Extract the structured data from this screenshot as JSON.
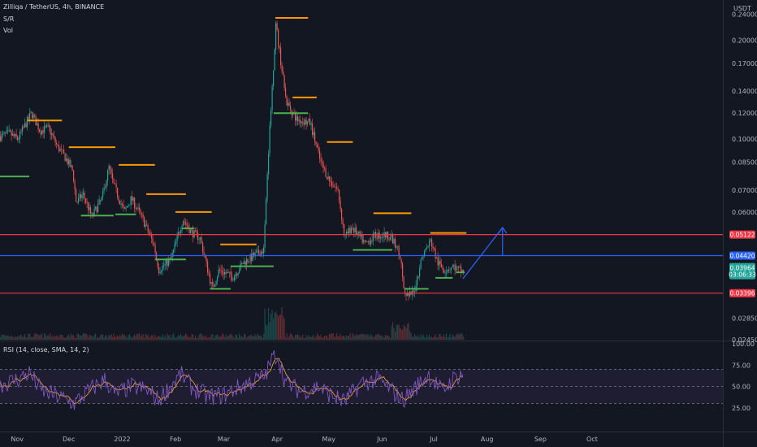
{
  "header": {
    "symbol_line": "Zilliqa / TetherUS, 4h, BINANCE",
    "indicator1": "S/R",
    "indicator2": "Vol"
  },
  "rsi_header": "RSI (14, close, SMA, 14, 2)",
  "price_axis": {
    "unit": "USDT",
    "ticks": [
      "0.24000",
      "0.20000",
      "0.17000",
      "0.14000",
      "0.12000",
      "0.10000",
      "0.08500",
      "0.07000",
      "0.06000",
      "0.02850",
      "0.02450"
    ],
    "price_tags": {
      "resistance": "0.05122",
      "current": "0.04420",
      "last": "0.03964",
      "countdown": "03:06:33",
      "support": "0.03396"
    }
  },
  "rsi_axis": {
    "ticks": [
      "100.00",
      "75.00",
      "50.00",
      "25.00"
    ]
  },
  "time_axis": {
    "labels": [
      "Nov",
      "Dec",
      "2022",
      "Feb",
      "Mar",
      "Apr",
      "May",
      "Jun",
      "Jul",
      "Aug",
      "Sep",
      "Oct"
    ]
  },
  "colors": {
    "background": "#131722",
    "up": "#26a69a",
    "down": "#ef5350",
    "resistance": "#ff9800",
    "support": "#4caf50",
    "red_line": "#f23645",
    "blue_line": "#2962ff",
    "rsi": "#7e57c2",
    "rsi_ma": "#ffa726"
  },
  "chart_data": {
    "type": "candlestick",
    "y_scale": "log",
    "ylim": [
      0.0245,
      0.245
    ],
    "rsi_ylim": [
      0,
      100
    ],
    "rsi_band": [
      30,
      70
    ],
    "price_path": [
      [
        "2021-10-22",
        0.102
      ],
      [
        "2021-10-27",
        0.104
      ],
      [
        "2021-11-01",
        0.1
      ],
      [
        "2021-11-06",
        0.112
      ],
      [
        "2021-11-09",
        0.12
      ],
      [
        "2021-11-14",
        0.106
      ],
      [
        "2021-11-19",
        0.108
      ],
      [
        "2021-11-24",
        0.095
      ],
      [
        "2021-11-28",
        0.089
      ],
      [
        "2021-12-03",
        0.08
      ],
      [
        "2021-12-05",
        0.064
      ],
      [
        "2021-12-09",
        0.068
      ],
      [
        "2021-12-14",
        0.058
      ],
      [
        "2021-12-20",
        0.066
      ],
      [
        "2021-12-24",
        0.082
      ],
      [
        "2021-12-27",
        0.072
      ],
      [
        "2022-01-02",
        0.06
      ],
      [
        "2022-01-06",
        0.066
      ],
      [
        "2022-01-12",
        0.058
      ],
      [
        "2022-01-19",
        0.048
      ],
      [
        "2022-01-22",
        0.04
      ],
      [
        "2022-01-29",
        0.043
      ],
      [
        "2022-02-05",
        0.057
      ],
      [
        "2022-02-10",
        0.052
      ],
      [
        "2022-02-15",
        0.05
      ],
      [
        "2022-02-22",
        0.035
      ],
      [
        "2022-02-26",
        0.04
      ],
      [
        "2022-03-06",
        0.038
      ],
      [
        "2022-03-12",
        0.042
      ],
      [
        "2022-03-18",
        0.044
      ],
      [
        "2022-03-24",
        0.046
      ],
      [
        "2022-03-26",
        0.08
      ],
      [
        "2022-03-28",
        0.12
      ],
      [
        "2022-03-31",
        0.225
      ],
      [
        "2022-04-03",
        0.17
      ],
      [
        "2022-04-06",
        0.13
      ],
      [
        "2022-04-12",
        0.115
      ],
      [
        "2022-04-20",
        0.112
      ],
      [
        "2022-04-26",
        0.085
      ],
      [
        "2022-05-01",
        0.075
      ],
      [
        "2022-05-06",
        0.07
      ],
      [
        "2022-05-10",
        0.05
      ],
      [
        "2022-05-14",
        0.054
      ],
      [
        "2022-05-22",
        0.048
      ],
      [
        "2022-05-28",
        0.051
      ],
      [
        "2022-06-05",
        0.051
      ],
      [
        "2022-06-11",
        0.045
      ],
      [
        "2022-06-14",
        0.033
      ],
      [
        "2022-06-19",
        0.034
      ],
      [
        "2022-06-24",
        0.044
      ],
      [
        "2022-06-29",
        0.049
      ],
      [
        "2022-07-03",
        0.042
      ],
      [
        "2022-07-07",
        0.04
      ],
      [
        "2022-07-12",
        0.041
      ],
      [
        "2022-07-15",
        0.04
      ],
      [
        "2022-07-18",
        0.03964
      ]
    ],
    "horizontal_lines": [
      {
        "kind": "resistance",
        "price": 0.05122,
        "color": "#f23645"
      },
      {
        "kind": "current",
        "price": 0.0442,
        "color": "#2962ff"
      },
      {
        "kind": "support",
        "price": 0.03396,
        "color": "#f23645"
      }
    ],
    "sr_segments": [
      {
        "kind": "resistance",
        "price": 0.114,
        "from": "2021-11-07",
        "to": "2021-11-27"
      },
      {
        "kind": "support",
        "price": 0.077,
        "from": "2021-10-22",
        "to": "2021-11-08"
      },
      {
        "kind": "resistance",
        "price": 0.0945,
        "from": "2021-12-01",
        "to": "2021-12-28"
      },
      {
        "kind": "support",
        "price": 0.0585,
        "from": "2021-12-08",
        "to": "2021-12-27"
      },
      {
        "kind": "resistance",
        "price": 0.0835,
        "from": "2021-12-30",
        "to": "2022-01-20"
      },
      {
        "kind": "resistance",
        "price": 0.068,
        "from": "2022-01-15",
        "to": "2022-02-07"
      },
      {
        "kind": "support",
        "price": 0.059,
        "from": "2021-12-28",
        "to": "2022-01-09"
      },
      {
        "kind": "resistance",
        "price": 0.06,
        "from": "2022-02-01",
        "to": "2022-02-22"
      },
      {
        "kind": "support",
        "price": 0.043,
        "from": "2022-01-20",
        "to": "2022-02-07"
      },
      {
        "kind": "support",
        "price": 0.0535,
        "from": "2022-02-05",
        "to": "2022-02-12"
      },
      {
        "kind": "resistance",
        "price": 0.0478,
        "from": "2022-02-27",
        "to": "2022-03-20"
      },
      {
        "kind": "support",
        "price": 0.041,
        "from": "2022-03-05",
        "to": "2022-03-30"
      },
      {
        "kind": "support",
        "price": 0.035,
        "from": "2022-02-21",
        "to": "2022-03-05"
      },
      {
        "kind": "resistance",
        "price": 0.234,
        "from": "2022-03-31",
        "to": "2022-04-19"
      },
      {
        "kind": "resistance",
        "price": 0.134,
        "from": "2022-04-10",
        "to": "2022-04-24"
      },
      {
        "kind": "support",
        "price": 0.12,
        "from": "2022-03-30",
        "to": "2022-04-19"
      },
      {
        "kind": "resistance",
        "price": 0.098,
        "from": "2022-04-30",
        "to": "2022-05-15"
      },
      {
        "kind": "support",
        "price": 0.046,
        "from": "2022-05-15",
        "to": "2022-06-07"
      },
      {
        "kind": "resistance",
        "price": 0.0595,
        "from": "2022-05-27",
        "to": "2022-06-18"
      },
      {
        "kind": "resistance",
        "price": 0.0518,
        "from": "2022-06-29",
        "to": "2022-07-20"
      },
      {
        "kind": "support",
        "price": 0.035,
        "from": "2022-06-14",
        "to": "2022-06-28"
      },
      {
        "kind": "support",
        "price": 0.0378,
        "from": "2022-07-02",
        "to": "2022-07-12"
      },
      {
        "kind": "support",
        "price": 0.0393,
        "from": "2022-07-14",
        "to": "2022-07-19"
      }
    ],
    "projection": {
      "line_from": [
        "2022-07-18",
        0.0376
      ],
      "line_to": [
        "2022-08-10",
        0.0538
      ],
      "measure_x": "2022-08-10",
      "measure_from": 0.0442,
      "measure_to": 0.0538
    },
    "rsi_path": [
      [
        "2021-10-22",
        52
      ],
      [
        "2021-11-01",
        58
      ],
      [
        "2021-11-08",
        66
      ],
      [
        "2021-11-15",
        45
      ],
      [
        "2021-11-25",
        38
      ],
      [
        "2021-12-04",
        30
      ],
      [
        "2021-12-12",
        44
      ],
      [
        "2021-12-22",
        58
      ],
      [
        "2021-12-28",
        40
      ],
      [
        "2022-01-06",
        50
      ],
      [
        "2022-01-15",
        46
      ],
      [
        "2022-01-22",
        34
      ],
      [
        "2022-02-04",
        64
      ],
      [
        "2022-02-11",
        48
      ],
      [
        "2022-02-20",
        38
      ],
      [
        "2022-03-01",
        40
      ],
      [
        "2022-03-15",
        54
      ],
      [
        "2022-03-25",
        62
      ],
      [
        "2022-03-29",
        82
      ],
      [
        "2022-04-01",
        88
      ],
      [
        "2022-04-06",
        54
      ],
      [
        "2022-04-15",
        44
      ],
      [
        "2022-04-25",
        50
      ],
      [
        "2022-05-02",
        40
      ],
      [
        "2022-05-10",
        32
      ],
      [
        "2022-05-20",
        54
      ],
      [
        "2022-05-30",
        58
      ],
      [
        "2022-06-06",
        46
      ],
      [
        "2022-06-13",
        34
      ],
      [
        "2022-06-20",
        48
      ],
      [
        "2022-06-28",
        64
      ],
      [
        "2022-07-06",
        44
      ],
      [
        "2022-07-12",
        58
      ],
      [
        "2022-07-18",
        66
      ]
    ]
  }
}
